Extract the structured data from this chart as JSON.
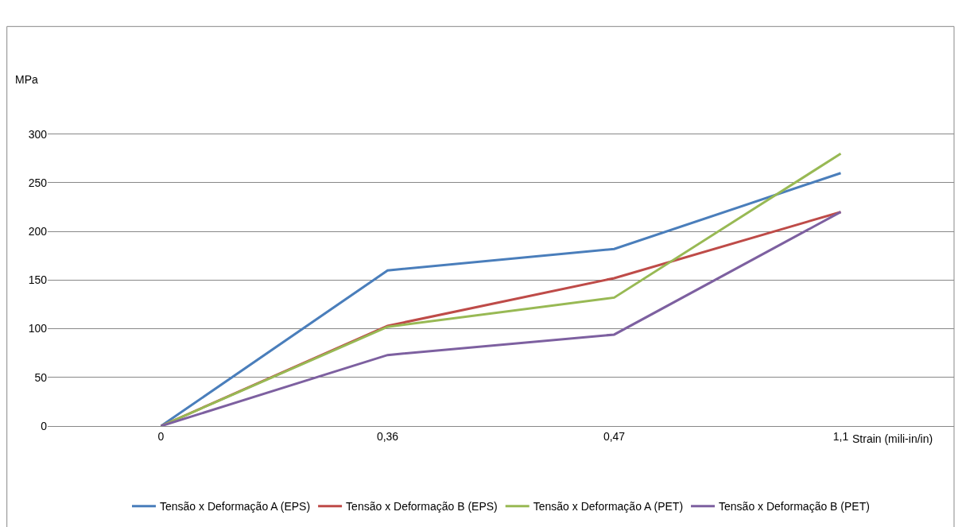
{
  "chart_data": {
    "type": "line",
    "xlabel": "Strain (mili-in/in)",
    "ylabel": "MPa",
    "categories": [
      "0",
      "0,36",
      "0,47",
      "1,1"
    ],
    "series": [
      {
        "name": "Tensão x Deformação A (EPS)",
        "color": "#4a7ebb",
        "values": [
          0,
          160,
          182,
          260
        ]
      },
      {
        "name": "Tensão x Deformação B (EPS)",
        "color": "#be4b48",
        "values": [
          0,
          103,
          152,
          220
        ]
      },
      {
        "name": "Tensão x Deformação A (PET)",
        "color": "#98b954",
        "values": [
          0,
          102,
          132,
          280
        ]
      },
      {
        "name": "Tensão x Deformação B (PET)",
        "color": "#7d60a0",
        "values": [
          0,
          73,
          94,
          220
        ]
      }
    ],
    "ylim": [
      0,
      300
    ],
    "yticks": [
      0,
      50,
      100,
      150,
      200,
      250,
      300
    ],
    "grid": "y",
    "legend": "bottom",
    "marker": "none",
    "line_style": "solid"
  }
}
